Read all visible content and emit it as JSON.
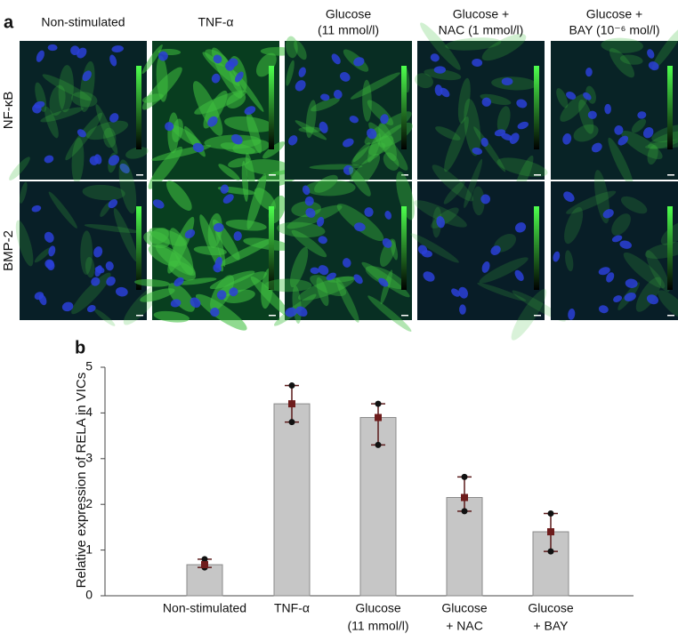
{
  "panel_a": {
    "label": "a",
    "columns": [
      [
        "Non-stimulated"
      ],
      [
        "TNF-α"
      ],
      [
        "Glucose",
        "(11 mmol/l)"
      ],
      [
        "Glucose +",
        "NAC (1 mmol/l)"
      ],
      [
        "Glucose +",
        "BAY (10⁻⁶ mol/l)"
      ]
    ],
    "rows": [
      "NF-κB",
      "BMP-2"
    ]
  },
  "panel_b": {
    "label": "b"
  },
  "chart_data": {
    "type": "bar",
    "y_label": "Relative expression of RELA in VICs",
    "categories": [
      [
        "Non-stimulated"
      ],
      [
        "TNF-α"
      ],
      [
        "Glucose",
        "(11 mmol/l)"
      ],
      [
        "Glucose",
        "+ NAC"
      ],
      [
        "Glucose",
        "+ BAY"
      ]
    ],
    "values": [
      0.68,
      4.2,
      3.9,
      2.15,
      1.4
    ],
    "lower": [
      0.62,
      3.8,
      3.3,
      1.85,
      0.97
    ],
    "upper": [
      0.8,
      4.6,
      4.2,
      2.6,
      1.8
    ],
    "color": "#c6c6c6",
    "ylim": [
      0,
      5
    ],
    "yticks": [
      0,
      1,
      2,
      3,
      4,
      5
    ],
    "grid": false
  }
}
